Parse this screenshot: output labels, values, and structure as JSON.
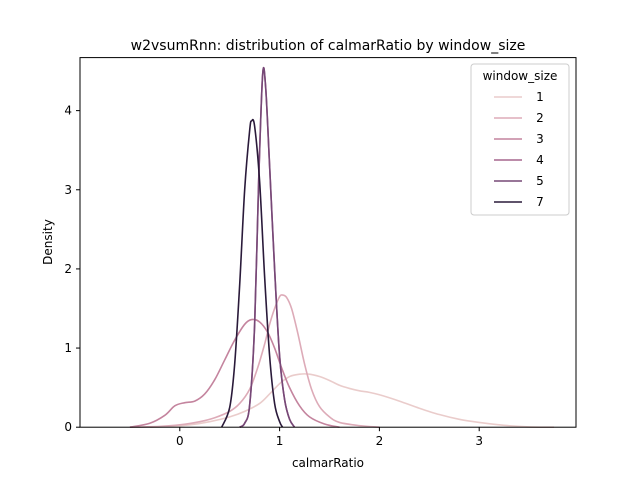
{
  "chart_data": {
    "type": "line",
    "title": "w2vsumRnn: distribution of calmarRatio by window_size",
    "xlabel": "calmarRatio",
    "ylabel": "Density",
    "xlim": [
      -1.0,
      3.97
    ],
    "ylim": [
      0,
      4.67
    ],
    "xticks": [
      0,
      1,
      2,
      3
    ],
    "yticks": [
      0,
      1,
      2,
      3,
      4
    ],
    "grid": false,
    "legend": {
      "title": "window_size",
      "placement": "top-right"
    },
    "series": [
      {
        "name": "1",
        "color": "#eacccb",
        "points": [
          [
            -0.3,
            0.0
          ],
          [
            -0.1,
            0.01
          ],
          [
            0.1,
            0.03
          ],
          [
            0.3,
            0.07
          ],
          [
            0.5,
            0.13
          ],
          [
            0.65,
            0.2
          ],
          [
            0.8,
            0.3
          ],
          [
            0.9,
            0.42
          ],
          [
            1.0,
            0.55
          ],
          [
            1.1,
            0.64
          ],
          [
            1.2,
            0.67
          ],
          [
            1.3,
            0.67
          ],
          [
            1.4,
            0.64
          ],
          [
            1.5,
            0.59
          ],
          [
            1.6,
            0.53
          ],
          [
            1.7,
            0.49
          ],
          [
            1.8,
            0.46
          ],
          [
            1.9,
            0.44
          ],
          [
            2.0,
            0.41
          ],
          [
            2.2,
            0.33
          ],
          [
            2.4,
            0.24
          ],
          [
            2.6,
            0.16
          ],
          [
            2.8,
            0.1
          ],
          [
            3.0,
            0.06
          ],
          [
            3.2,
            0.03
          ],
          [
            3.4,
            0.01
          ],
          [
            3.6,
            0.0
          ],
          [
            3.75,
            0.0
          ]
        ]
      },
      {
        "name": "2",
        "color": "#ddabb8",
        "points": [
          [
            -0.5,
            0.0
          ],
          [
            -0.2,
            0.01
          ],
          [
            0.0,
            0.03
          ],
          [
            0.2,
            0.07
          ],
          [
            0.35,
            0.12
          ],
          [
            0.5,
            0.2
          ],
          [
            0.6,
            0.3
          ],
          [
            0.7,
            0.48
          ],
          [
            0.78,
            0.75
          ],
          [
            0.85,
            1.05
          ],
          [
            0.9,
            1.3
          ],
          [
            0.95,
            1.5
          ],
          [
            1.0,
            1.65
          ],
          [
            1.03,
            1.67
          ],
          [
            1.07,
            1.64
          ],
          [
            1.12,
            1.5
          ],
          [
            1.18,
            1.2
          ],
          [
            1.25,
            0.8
          ],
          [
            1.32,
            0.48
          ],
          [
            1.4,
            0.26
          ],
          [
            1.5,
            0.13
          ],
          [
            1.6,
            0.06
          ],
          [
            1.8,
            0.02
          ],
          [
            2.0,
            0.0
          ]
        ]
      },
      {
        "name": "3",
        "color": "#c4849e",
        "points": [
          [
            -0.5,
            0.0
          ],
          [
            -0.3,
            0.05
          ],
          [
            -0.15,
            0.15
          ],
          [
            -0.05,
            0.27
          ],
          [
            0.05,
            0.31
          ],
          [
            0.15,
            0.33
          ],
          [
            0.25,
            0.42
          ],
          [
            0.35,
            0.6
          ],
          [
            0.45,
            0.85
          ],
          [
            0.55,
            1.1
          ],
          [
            0.65,
            1.3
          ],
          [
            0.72,
            1.36
          ],
          [
            0.8,
            1.33
          ],
          [
            0.88,
            1.2
          ],
          [
            0.95,
            1.0
          ],
          [
            1.02,
            0.75
          ],
          [
            1.1,
            0.5
          ],
          [
            1.2,
            0.27
          ],
          [
            1.3,
            0.13
          ],
          [
            1.45,
            0.04
          ],
          [
            1.6,
            0.0
          ]
        ]
      },
      {
        "name": "4",
        "color": "#a5678d",
        "points": [
          [
            0.6,
            0.0
          ],
          [
            0.65,
            0.05
          ],
          [
            0.7,
            0.28
          ],
          [
            0.75,
            1.3
          ],
          [
            0.79,
            3.1
          ],
          [
            0.83,
            4.45
          ],
          [
            0.86,
            4.3
          ],
          [
            0.9,
            3.3
          ],
          [
            0.95,
            2.0
          ],
          [
            1.0,
            0.9
          ],
          [
            1.05,
            0.35
          ],
          [
            1.1,
            0.1
          ],
          [
            1.15,
            0.0
          ]
        ]
      },
      {
        "name": "5",
        "color": "#764877",
        "points": [
          [
            0.6,
            0.0
          ],
          [
            0.65,
            0.05
          ],
          [
            0.7,
            0.28
          ],
          [
            0.75,
            1.3
          ],
          [
            0.79,
            3.1
          ],
          [
            0.83,
            4.45
          ],
          [
            0.86,
            4.3
          ],
          [
            0.9,
            3.3
          ],
          [
            0.95,
            2.0
          ],
          [
            1.0,
            0.9
          ],
          [
            1.05,
            0.35
          ],
          [
            1.1,
            0.1
          ],
          [
            1.15,
            0.0
          ]
        ]
      },
      {
        "name": "7",
        "color": "#2a1a3a",
        "points": [
          [
            0.42,
            0.0
          ],
          [
            0.5,
            0.25
          ],
          [
            0.55,
            0.8
          ],
          [
            0.6,
            1.8
          ],
          [
            0.65,
            3.0
          ],
          [
            0.7,
            3.75
          ],
          [
            0.72,
            3.87
          ],
          [
            0.75,
            3.8
          ],
          [
            0.8,
            3.1
          ],
          [
            0.85,
            1.9
          ],
          [
            0.9,
            0.9
          ],
          [
            0.95,
            0.3
          ],
          [
            1.0,
            0.07
          ],
          [
            1.03,
            0.0
          ]
        ]
      }
    ]
  }
}
